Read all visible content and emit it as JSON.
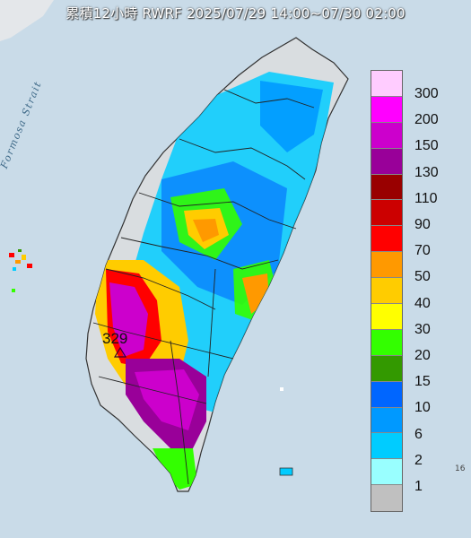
{
  "title": "累積12小時 RWRF 2025/07/29 14:00~07/30 02:00",
  "strait_label": "Formosa Strait",
  "max_value_label": "329",
  "corner_mark": "16",
  "legend": {
    "entries": [
      {
        "label": "300",
        "color": "#ffccff"
      },
      {
        "label": "200",
        "color": "#ff00ff"
      },
      {
        "label": "150",
        "color": "#cc00cc"
      },
      {
        "label": "130",
        "color": "#990099"
      },
      {
        "label": "110",
        "color": "#990000"
      },
      {
        "label": "90",
        "color": "#cc0000"
      },
      {
        "label": "70",
        "color": "#ff0000"
      },
      {
        "label": "50",
        "color": "#ff9900"
      },
      {
        "label": "40",
        "color": "#ffcc00"
      },
      {
        "label": "30",
        "color": "#ffff00"
      },
      {
        "label": "20",
        "color": "#33ff00"
      },
      {
        "label": "15",
        "color": "#339900"
      },
      {
        "label": "10",
        "color": "#0066ff"
      },
      {
        "label": "6",
        "color": "#0099ff"
      },
      {
        "label": "2",
        "color": "#00ccff"
      },
      {
        "label": "1",
        "color": "#99ffff"
      },
      {
        "label": "",
        "color": "#c0c0c0"
      }
    ]
  },
  "colors": {
    "sea": "#c9dbe8",
    "land": "#d9dde0",
    "border": "#222222"
  }
}
